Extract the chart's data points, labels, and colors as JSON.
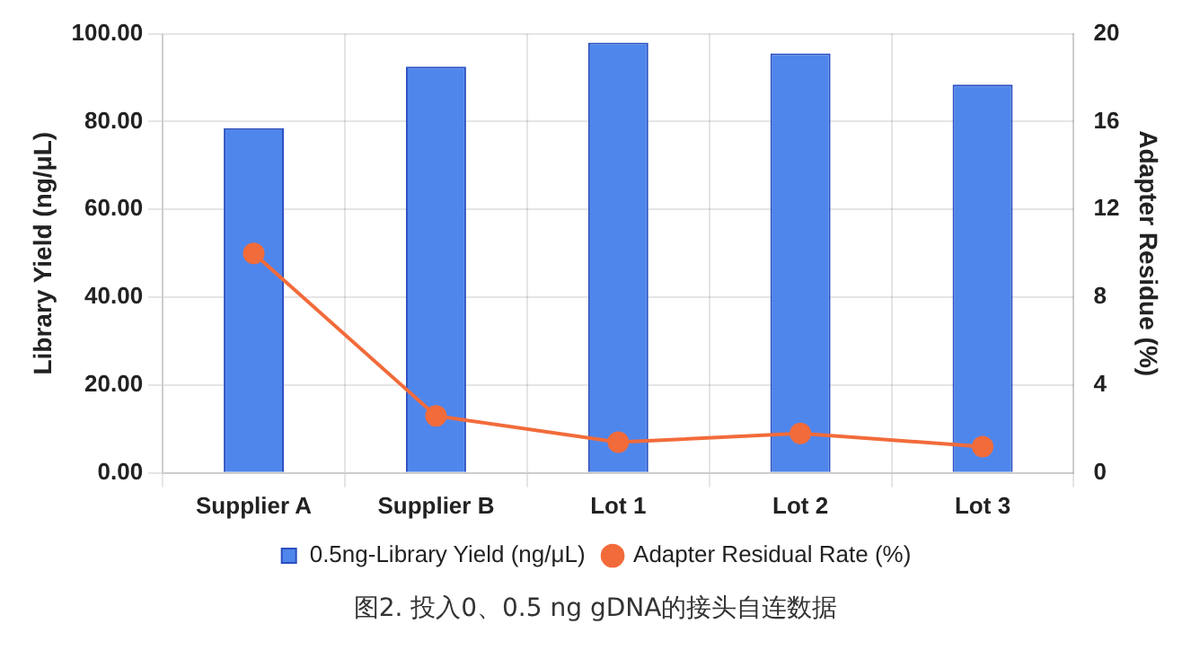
{
  "chart_data": {
    "type": "bar",
    "categories": [
      "Supplier A",
      "Supplier B",
      "Lot 1",
      "Lot 2",
      "Lot 3"
    ],
    "series": [
      {
        "name": "0.5ng-Library Yield (ng/μL)",
        "color": "#4f86ec",
        "values": [
          78.5,
          92.5,
          98.0,
          95.5,
          88.4
        ]
      },
      {
        "name": "Adapter Residual Rate (%)",
        "type": "line",
        "axis": "y2",
        "color": "#f26b3a",
        "values": [
          10.0,
          2.6,
          1.4,
          1.8,
          1.2
        ]
      }
    ],
    "ylabel": "Library Yield (ng/μL)",
    "y2label": "Adapter Residue (%)",
    "ylim": [
      0,
      100
    ],
    "yticks": [
      {
        "value": 0,
        "label": "0.00"
      },
      {
        "value": 20,
        "label": "20.00"
      },
      {
        "value": 40,
        "label": "40.00"
      },
      {
        "value": 60,
        "label": "60.00"
      },
      {
        "value": 80,
        "label": "80.00"
      },
      {
        "value": 100,
        "label": "100.00"
      }
    ],
    "y2lim": [
      0,
      20
    ],
    "y2ticks": [
      0,
      4,
      8,
      12,
      16,
      20
    ],
    "grid": true,
    "legend": "bottom",
    "marker": "circle",
    "annotations": [
      "图2. 投入0、0.5 ng gDNA的接头自连数据"
    ]
  }
}
